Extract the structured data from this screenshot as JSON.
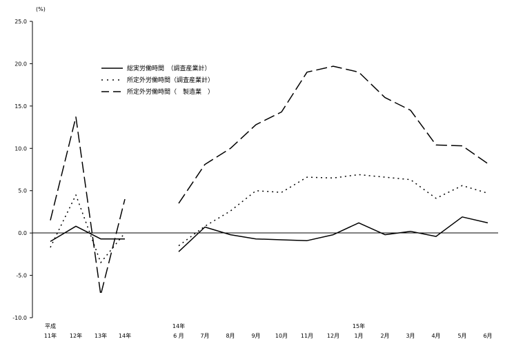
{
  "chart_data": {
    "type": "line",
    "ylabel": "(%)",
    "ylim": [
      -10,
      25
    ],
    "yticks": [
      "25.0",
      "20.0",
      "15.0",
      "10.0",
      "5.0",
      "0.0",
      "-5.0",
      "-10.0"
    ],
    "ytick_values": [
      25,
      20,
      15,
      10,
      5,
      0,
      -5,
      -10
    ],
    "grid": false,
    "legend_position": "top-left",
    "x_labels": [
      {
        "top": "平成",
        "bottom": "11年"
      },
      {
        "top": "",
        "bottom": "12年"
      },
      {
        "top": "",
        "bottom": "13年"
      },
      {
        "top": "",
        "bottom": "14年"
      },
      {
        "top": "14年",
        "bottom": "6 月"
      },
      {
        "top": "",
        "bottom": "7月"
      },
      {
        "top": "",
        "bottom": "8月"
      },
      {
        "top": "",
        "bottom": "9月"
      },
      {
        "top": "",
        "bottom": "10月"
      },
      {
        "top": "",
        "bottom": "11月"
      },
      {
        "top": "",
        "bottom": "12月"
      },
      {
        "top": "15年",
        "bottom": "1月"
      },
      {
        "top": "",
        "bottom": "2月"
      },
      {
        "top": "",
        "bottom": "3月"
      },
      {
        "top": "",
        "bottom": "4月"
      },
      {
        "top": "",
        "bottom": "5月"
      },
      {
        "top": "",
        "bottom": "6月"
      }
    ],
    "segments": [
      [
        0,
        3
      ],
      [
        4,
        16
      ]
    ],
    "series": [
      {
        "name": "総実労働時間　（調査産業計）",
        "style": "solid",
        "values": [
          -1.0,
          0.8,
          -0.7,
          -0.7,
          -2.2,
          0.7,
          -0.2,
          -0.7,
          -0.8,
          -0.9,
          -0.2,
          1.2,
          -0.2,
          0.2,
          -0.4,
          1.9,
          1.2
        ]
      },
      {
        "name": "所定外労働時間（調査産業計）",
        "style": "dotted",
        "values": [
          -1.7,
          4.5,
          -3.5,
          0.0,
          -1.5,
          0.8,
          2.6,
          5.0,
          4.8,
          6.6,
          6.5,
          6.9,
          6.6,
          6.3,
          4.1,
          5.6,
          4.7
        ]
      },
      {
        "name": "所定外労働時間（　製造業　）",
        "style": "dashed",
        "values": [
          1.5,
          13.7,
          -7.3,
          4.0,
          3.5,
          8.1,
          10.0,
          12.8,
          14.3,
          19.0,
          19.7,
          19.0,
          16.0,
          14.5,
          10.4,
          10.3,
          8.2
        ]
      }
    ]
  }
}
